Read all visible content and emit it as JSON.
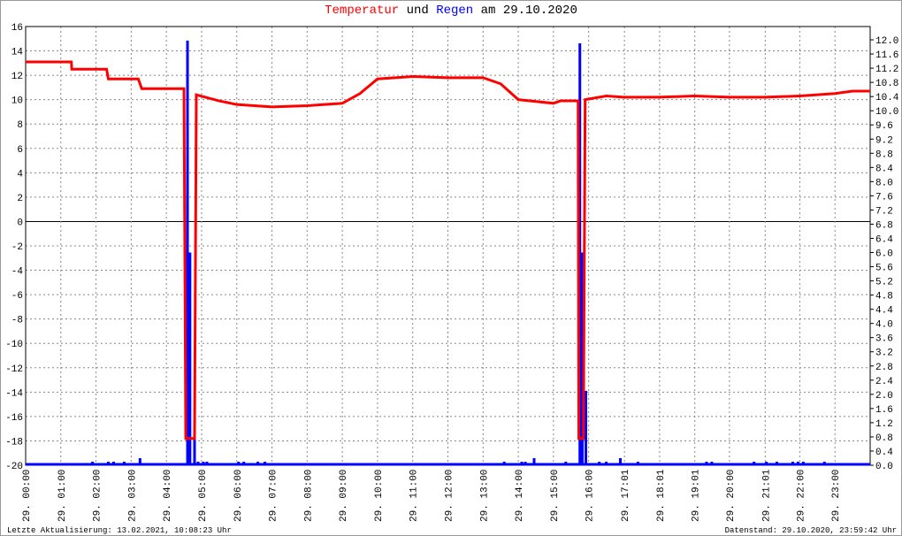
{
  "chart_data": {
    "type": "line",
    "title": [
      "und",
      "am 29.10.2020"
    ],
    "footer_left": "Letzte Aktualisierung: 13.02.2021, 10:08:23 Uhr",
    "footer_right": "Datenstand: 29.10.2020, 23:59:42 Uhr",
    "grid": true,
    "xlim": [
      0,
      24
    ],
    "xticks": [
      {
        "value": 0,
        "label": "29. 00:00"
      },
      {
        "value": 1,
        "label": "29. 01:00"
      },
      {
        "value": 2,
        "label": "29. 02:00"
      },
      {
        "value": 3,
        "label": "29. 03:00"
      },
      {
        "value": 4,
        "label": "29. 04:00"
      },
      {
        "value": 5,
        "label": "29. 05:00"
      },
      {
        "value": 6,
        "label": "29. 06:00"
      },
      {
        "value": 7,
        "label": "29. 07:00"
      },
      {
        "value": 8,
        "label": "29. 08:00"
      },
      {
        "value": 9,
        "label": "29. 09:00"
      },
      {
        "value": 10,
        "label": "29. 10:00"
      },
      {
        "value": 11,
        "label": "29. 11:00"
      },
      {
        "value": 12,
        "label": "29. 12:00"
      },
      {
        "value": 13,
        "label": "29. 13:00"
      },
      {
        "value": 14,
        "label": "29. 14:00"
      },
      {
        "value": 15,
        "label": "29. 15:00"
      },
      {
        "value": 16,
        "label": "29. 16:00"
      },
      {
        "value": 17.017,
        "label": "29. 17:01"
      },
      {
        "value": 18.017,
        "label": "29. 18:01"
      },
      {
        "value": 19.017,
        "label": "29. 19:01"
      },
      {
        "value": 20,
        "label": "29. 20:00"
      },
      {
        "value": 21.017,
        "label": "29. 21:01"
      },
      {
        "value": 22,
        "label": "29. 22:00"
      },
      {
        "value": 23,
        "label": "29. 23:00"
      }
    ],
    "ylim": [
      -20,
      16
    ],
    "yticks": [
      -20,
      -18,
      -16,
      -14,
      -12,
      -10,
      -8,
      -6,
      -4,
      -2,
      0,
      2,
      4,
      6,
      8,
      10,
      12,
      14,
      16
    ],
    "y2lim": [
      0,
      12.375
    ],
    "y2ticks": [
      {
        "value": 0,
        "label": "0.0"
      },
      {
        "value": 0.4,
        "label": "0.4"
      },
      {
        "value": 0.8,
        "label": "0.8"
      },
      {
        "value": 1.2,
        "label": "1.2"
      },
      {
        "value": 1.6,
        "label": "1.6"
      },
      {
        "value": 2,
        "label": "2.0"
      },
      {
        "value": 2.4,
        "label": "2.4"
      },
      {
        "value": 2.8,
        "label": "2.8"
      },
      {
        "value": 3.2,
        "label": "3.2"
      },
      {
        "value": 3.6,
        "label": "3.6"
      },
      {
        "value": 4,
        "label": "4.0"
      },
      {
        "value": 4.4,
        "label": "4.4"
      },
      {
        "value": 4.8,
        "label": "4.8"
      },
      {
        "value": 5.2,
        "label": "5.2"
      },
      {
        "value": 5.6,
        "label": "5.6"
      },
      {
        "value": 6,
        "label": "6.0"
      },
      {
        "value": 6.4,
        "label": "6.4"
      },
      {
        "value": 6.8,
        "label": "6.8"
      },
      {
        "value": 7.2,
        "label": "7.2"
      },
      {
        "value": 7.6,
        "label": "7.6"
      },
      {
        "value": 8,
        "label": "8.0"
      },
      {
        "value": 8.4,
        "label": "8.4"
      },
      {
        "value": 8.8,
        "label": "8.8"
      },
      {
        "value": 9.2,
        "label": "9.2"
      },
      {
        "value": 9.6,
        "label": "9.6"
      },
      {
        "value": 10,
        "label": "10.0"
      },
      {
        "value": 10.4,
        "label": "10.4"
      },
      {
        "value": 10.8,
        "label": "10.8"
      },
      {
        "value": 11.2,
        "label": "11.2"
      },
      {
        "value": 11.6,
        "label": "11.6"
      },
      {
        "value": 12,
        "label": "12.0"
      }
    ],
    "series": [
      {
        "name": "Temperatur",
        "color": "#ff0000",
        "x": [
          0,
          1.3,
          1.31,
          2.3,
          2.35,
          3.2,
          3.3,
          4.5,
          4.55,
          4.8,
          4.85,
          5.5,
          6,
          7,
          8,
          9,
          9.5,
          10,
          11,
          12,
          13,
          13.5,
          14,
          15,
          15.2,
          15.7,
          15.72,
          15.85,
          15.9,
          16.5,
          17,
          18,
          19,
          20,
          21,
          22,
          23,
          23.5,
          24
        ],
        "values": [
          13.1,
          13.1,
          12.5,
          12.5,
          11.7,
          11.7,
          10.9,
          10.9,
          -17.8,
          -17.8,
          10.4,
          9.9,
          9.6,
          9.4,
          9.5,
          9.7,
          10.5,
          11.7,
          11.9,
          11.8,
          11.8,
          11.3,
          10,
          9.7,
          9.9,
          9.9,
          -17.8,
          -17.8,
          10,
          10.3,
          10.2,
          10.2,
          10.3,
          10.2,
          10.2,
          10.3,
          10.5,
          10.7,
          10.7
        ]
      },
      {
        "name": "Regen",
        "color": "#0000ff",
        "axis": "y2",
        "style": "bar",
        "x": [
          1.9,
          2.35,
          2.5,
          2.8,
          3.25,
          4.6,
          4.67,
          4.8,
          4.9,
          5.05,
          5.15,
          6.05,
          6.2,
          6.6,
          6.8,
          13.6,
          14.1,
          14.2,
          14.45,
          15.35,
          15.75,
          15.82,
          15.92,
          16.3,
          16.5,
          16.9,
          17.4,
          19.35,
          19.5,
          20.7,
          21.05,
          21.35,
          21.8,
          21.95,
          22.1,
          22.7
        ],
        "values": [
          0.1,
          0.1,
          0.1,
          0.1,
          0.2,
          11.98,
          6.0,
          0.8,
          0.1,
          0.1,
          0.1,
          0.1,
          0.1,
          0.1,
          0.1,
          0.1,
          0.1,
          0.1,
          0.2,
          0.1,
          11.9,
          6.0,
          2.1,
          0.1,
          0.1,
          0.2,
          0.1,
          0.1,
          0.1,
          0.1,
          0.1,
          0.1,
          0.1,
          0.1,
          0.1,
          0.1
        ]
      }
    ]
  }
}
